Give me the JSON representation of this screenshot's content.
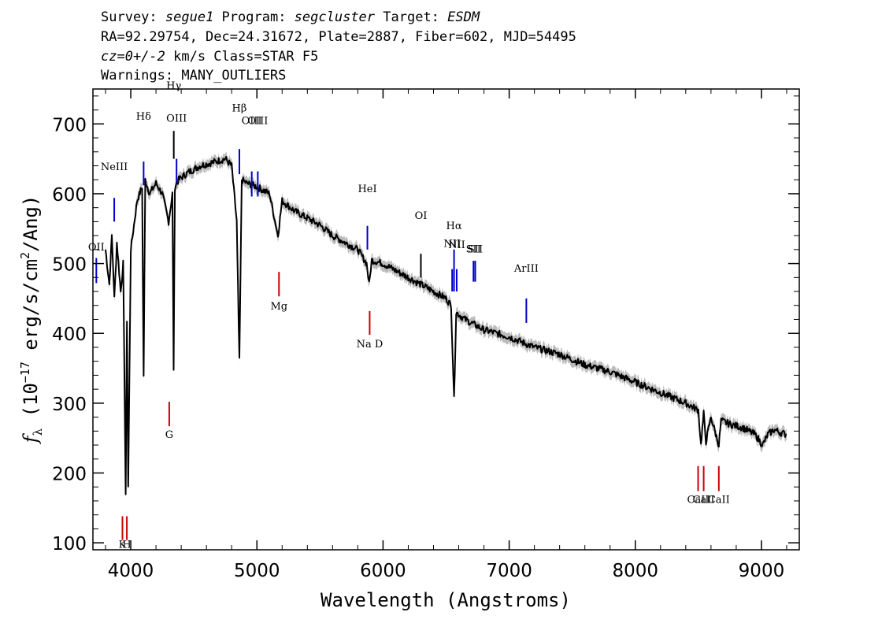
{
  "header": {
    "survey_prefix": "Survey: ",
    "survey": "segue1",
    "program_prefix": " Program: ",
    "program": "segcluster",
    "target_prefix": " Target: ",
    "target": "ESDM",
    "line2": "RA=92.29754, Dec=24.31672, Plate=2887, Fiber=602, MJD=54495",
    "cz_value": "cz=0+/-2",
    "cz_rest": " km/s Class=STAR F5",
    "warnings": "Warnings: MANY_OUTLIERS"
  },
  "chart_data": {
    "type": "line",
    "xlabel": "Wavelength (Angstroms)",
    "ylabel": "f_λ (10^-17 erg/s/cm^2/Ang)",
    "xlim": [
      3700,
      9300
    ],
    "ylim": [
      90,
      750
    ],
    "x_ticks": [
      4000,
      5000,
      6000,
      7000,
      8000,
      9000
    ],
    "y_ticks": [
      100,
      200,
      300,
      400,
      500,
      600,
      700
    ],
    "grid": false,
    "series": [
      {
        "color": "#000000",
        "band_color": "#bbbbbb",
        "x": [
          3800,
          3830,
          3850,
          3870,
          3890,
          3920,
          3940,
          3960,
          3970,
          3980,
          4000,
          4050,
          4090,
          4102,
          4115,
          4150,
          4200,
          4250,
          4300,
          4330,
          4340,
          4350,
          4380,
          4450,
          4550,
          4650,
          4750,
          4800,
          4840,
          4861,
          4880,
          4920,
          5000,
          5100,
          5167,
          5200,
          5300,
          5400,
          5500,
          5600,
          5700,
          5800,
          5870,
          5890,
          5910,
          6000,
          6100,
          6200,
          6300,
          6400,
          6500,
          6540,
          6563,
          6580,
          6650,
          6700,
          6800,
          6900,
          7000,
          7200,
          7400,
          7600,
          7800,
          8000,
          8200,
          8400,
          8500,
          8520,
          8542,
          8560,
          8600,
          8662,
          8680,
          8750,
          8850,
          8950,
          9010,
          9050,
          9100,
          9150,
          9200
        ],
        "y": [
          520,
          470,
          540,
          450,
          530,
          460,
          500,
          170,
          420,
          180,
          520,
          590,
          610,
          340,
          620,
          600,
          615,
          600,
          560,
          600,
          350,
          610,
          620,
          630,
          640,
          645,
          650,
          640,
          560,
          360,
          620,
          615,
          610,
          600,
          540,
          590,
          575,
          565,
          555,
          540,
          530,
          520,
          500,
          470,
          505,
          500,
          490,
          480,
          470,
          460,
          450,
          440,
          305,
          430,
          420,
          415,
          405,
          400,
          395,
          380,
          370,
          355,
          345,
          330,
          315,
          300,
          290,
          240,
          285,
          245,
          280,
          240,
          275,
          270,
          265,
          255,
          240,
          255,
          262,
          258,
          255
        ]
      }
    ],
    "line_labels": [
      {
        "label": "Hδ",
        "wavelength": 4102,
        "y0": 612,
        "y1": 646,
        "label_y": 706,
        "color": "#0000cc"
      },
      {
        "label": "Hγ",
        "wavelength": 4341,
        "y0": 650,
        "y1": 690,
        "label_y": 750,
        "color": "#000000"
      },
      {
        "label": "OIII",
        "wavelength": 4363,
        "y0": 616,
        "y1": 650,
        "label_y": 703,
        "color": "#0000cc"
      },
      {
        "label": "Hβ",
        "wavelength": 4861,
        "y0": 628,
        "y1": 664,
        "label_y": 718,
        "color": "#0000cc"
      },
      {
        "label": "OIII",
        "wavelength": 4959,
        "y0": 596,
        "y1": 632,
        "label_y": 700,
        "color": "#0000cc"
      },
      {
        "label": "OIII",
        "wavelength": 5007,
        "y0": 596,
        "y1": 632,
        "label_y": 700,
        "color": "#0000cc"
      },
      {
        "label": "NeIII",
        "wavelength": 3869,
        "y0": 560,
        "y1": 594,
        "label_y": 634,
        "color": "#0000cc"
      },
      {
        "label": "OII",
        "wavelength": 3727,
        "y0": 472,
        "y1": 508,
        "label_y": 519,
        "color": "#0000cc"
      },
      {
        "label": "HeI",
        "wavelength": 5876,
        "y0": 520,
        "y1": 554,
        "label_y": 602,
        "color": "#0000cc"
      },
      {
        "label": "OI",
        "wavelength": 6300,
        "y0": 480,
        "y1": 514,
        "label_y": 564,
        "color": "#000000"
      },
      {
        "label": "NII",
        "wavelength": 6548,
        "y0": 460,
        "y1": 492,
        "label_y": 524,
        "color": "#0000cc"
      },
      {
        "label": "Hα",
        "wavelength": 6563,
        "y0": 460,
        "y1": 520,
        "label_y": 549,
        "color": "#0000cc"
      },
      {
        "label": "NII",
        "wavelength": 6584,
        "y0": 460,
        "y1": 492,
        "label_y": 522,
        "color": "#0000cc"
      },
      {
        "label": "SII",
        "wavelength": 6717,
        "y0": 474,
        "y1": 504,
        "label_y": 516,
        "color": "#0000cc"
      },
      {
        "label": "SII",
        "wavelength": 6731,
        "y0": 474,
        "y1": 504,
        "label_y": 516,
        "color": "#0000cc"
      },
      {
        "label": "ArIII",
        "wavelength": 7136,
        "y0": 415,
        "y1": 450,
        "label_y": 488,
        "color": "#0000cc"
      },
      {
        "label": "Mg",
        "wavelength": 5175,
        "y0": 453,
        "y1": 488,
        "label_y": 434,
        "color": "#cc0000"
      },
      {
        "label": "Na D",
        "wavelength": 5894,
        "y0": 398,
        "y1": 432,
        "label_y": 380,
        "color": "#cc0000"
      },
      {
        "label": "G",
        "wavelength": 4305,
        "y0": 267,
        "y1": 302,
        "label_y": 250,
        "color": "#cc0000"
      },
      {
        "label": "K",
        "wavelength": 3934,
        "y0": 104,
        "y1": 138,
        "label_y": 93,
        "color": "#cc0000"
      },
      {
        "label": "H",
        "wavelength": 3969,
        "y0": 104,
        "y1": 138,
        "label_y": 93,
        "color": "#cc0000"
      },
      {
        "label": "CaII",
        "wavelength": 8498,
        "y0": 174,
        "y1": 210,
        "label_y": 157,
        "color": "#cc0000"
      },
      {
        "label": "CaII",
        "wavelength": 8542,
        "y0": 174,
        "y1": 210,
        "label_y": 157,
        "color": "#cc0000"
      },
      {
        "label": "CaII",
        "wavelength": 8662,
        "y0": 174,
        "y1": 210,
        "label_y": 157,
        "color": "#cc0000"
      }
    ]
  }
}
